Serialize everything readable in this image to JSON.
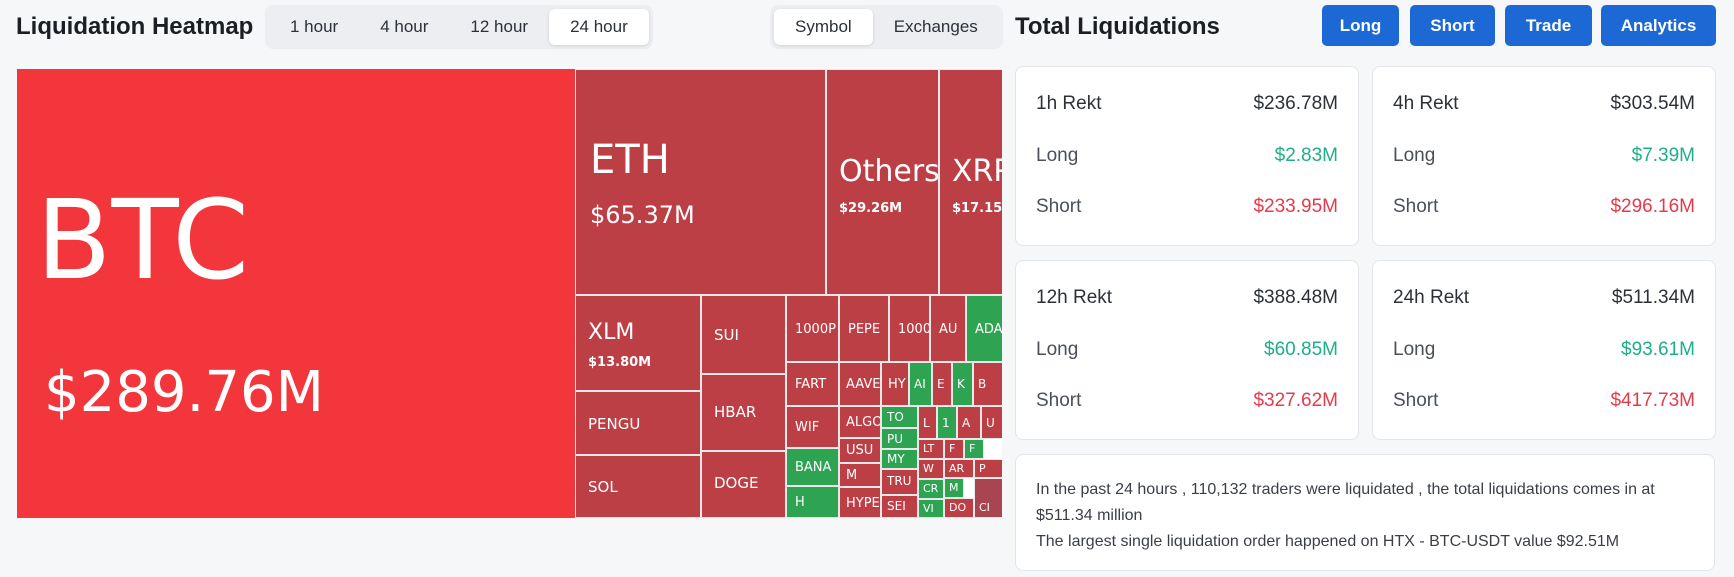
{
  "heatmap": {
    "title": "Liquidation Heatmap",
    "time_tabs": [
      {
        "label": "1 hour"
      },
      {
        "label": "4 hour"
      },
      {
        "label": "12 hour"
      },
      {
        "label": "24 hour"
      }
    ],
    "group_tabs": [
      {
        "label": "Symbol"
      },
      {
        "label": "Exchanges"
      }
    ],
    "tiles": {
      "btc": {
        "symbol": "BTC",
        "value": "$289.76M"
      },
      "eth": {
        "symbol": "ETH",
        "value": "$65.37M"
      },
      "others": {
        "symbol": "Others",
        "value": "$29.26M"
      },
      "xrp": {
        "symbol": "XRP",
        "value": "$17.15M"
      },
      "xlm": {
        "symbol": "XLM",
        "value": "$13.80M"
      },
      "sui": {
        "symbol": "SUI"
      },
      "pengu": {
        "symbol": "PENGU"
      },
      "hbar": {
        "symbol": "HBAR"
      },
      "sol": {
        "symbol": "SOL"
      },
      "doge": {
        "symbol": "DOGE"
      },
      "small": [
        "1000P",
        "PEPE",
        "1000",
        "AU",
        "ADA",
        "FART",
        "AAVE",
        "HY",
        "AI",
        "E",
        "K",
        "B",
        "WIF",
        "ALGO",
        "TO",
        "L",
        "1",
        "A",
        "U",
        "BANA",
        "USU",
        "PU",
        "LT",
        "F",
        "F",
        "M",
        "MY",
        "W",
        "AR",
        "P",
        "H",
        "HYPE",
        "TRU",
        "SEI",
        "CR",
        "VI",
        "M",
        "DO",
        "CI"
      ]
    }
  },
  "totals": {
    "title": "Total Liquidations",
    "buttons": [
      "Long",
      "Short",
      "Trade",
      "Analytics"
    ],
    "cards": [
      {
        "period": "1h Rekt",
        "total": "$236.78M",
        "long_label": "Long",
        "long": "$2.83M",
        "short_label": "Short",
        "short": "$233.95M"
      },
      {
        "period": "4h Rekt",
        "total": "$303.54M",
        "long_label": "Long",
        "long": "$7.39M",
        "short_label": "Short",
        "short": "$296.16M"
      },
      {
        "period": "12h Rekt",
        "total": "$388.48M",
        "long_label": "Long",
        "long": "$60.85M",
        "short_label": "Short",
        "short": "$327.62M"
      },
      {
        "period": "24h Rekt",
        "total": "$511.34M",
        "long_label": "Long",
        "long": "$93.61M",
        "short_label": "Short",
        "short": "$417.73M"
      }
    ],
    "summary": {
      "line1": "In the past 24 hours , 110,132 traders were liquidated , the total liquidations comes in at $511.34 million",
      "line2": "The largest single liquidation order happened on HTX - BTC-USDT value $92.51M"
    }
  }
}
